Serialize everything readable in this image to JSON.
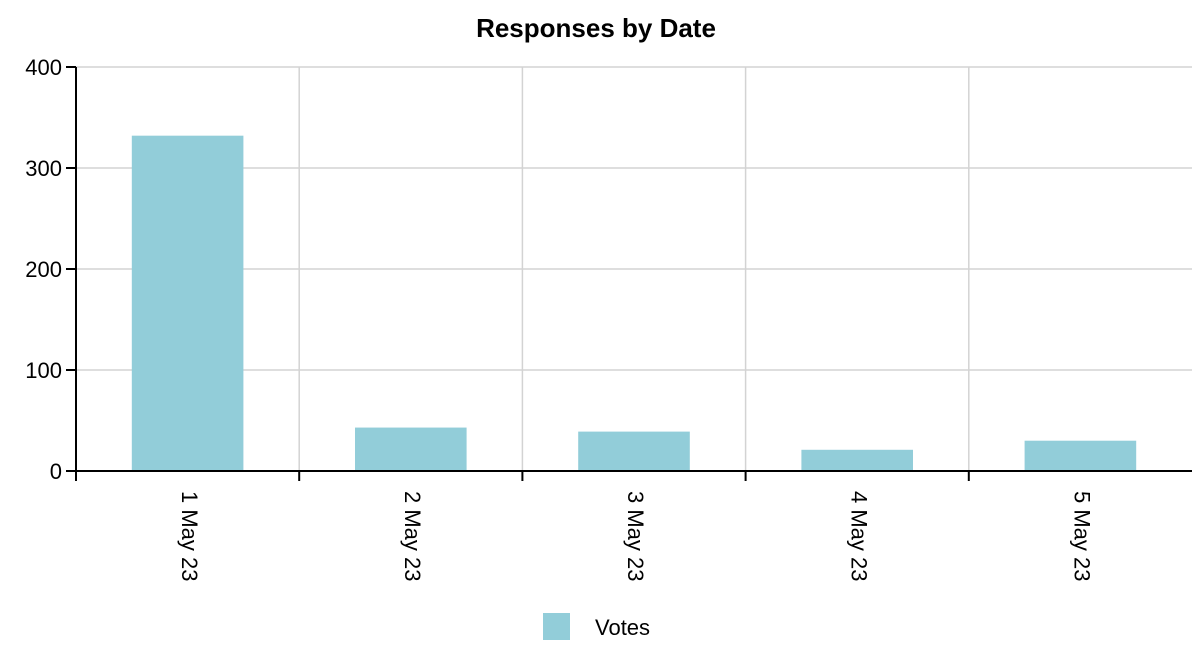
{
  "chart_data": {
    "type": "bar",
    "title": "Responses by Date",
    "categories": [
      "1 May 23",
      "2 May 23",
      "3 May 23",
      "4 May 23",
      "5 May 23"
    ],
    "series": [
      {
        "name": "Votes",
        "values": [
          332,
          43,
          39,
          21,
          30
        ],
        "color": "#92cdd9"
      }
    ],
    "y_ticks": [
      0,
      100,
      200,
      300,
      400
    ],
    "ylim": [
      0,
      400
    ],
    "grid": true,
    "legend_position": "bottom-center"
  }
}
